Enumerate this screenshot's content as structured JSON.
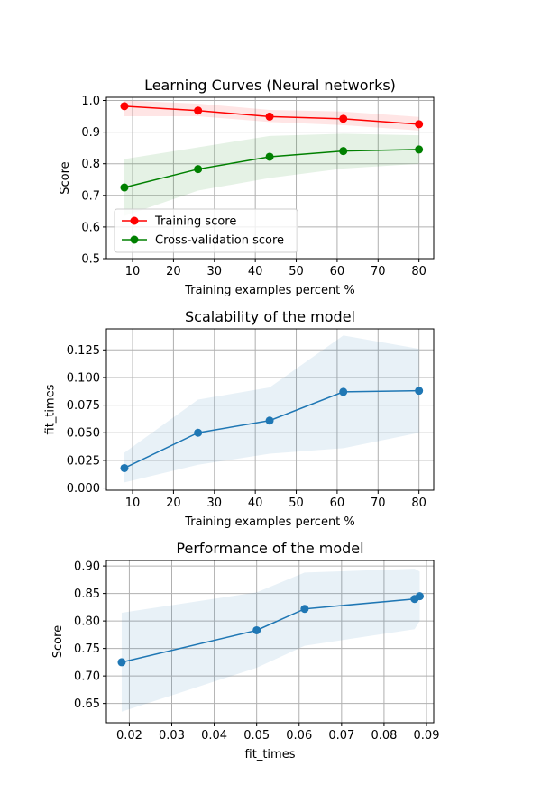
{
  "chart_data": [
    {
      "type": "line",
      "title": "Learning Curves (Neural networks)",
      "xlabel": "Training examples percent %",
      "ylabel": "Score",
      "xlim": [
        3.6,
        83.6
      ],
      "ylim": [
        0.5,
        1.01
      ],
      "xticks": [
        10,
        20,
        30,
        40,
        50,
        60,
        70,
        80
      ],
      "yticks": [
        0.5,
        0.6,
        0.7,
        0.8,
        0.9,
        1.0
      ],
      "ytick_decimals": 1,
      "grid": true,
      "legend": "lower-left",
      "series": [
        {
          "name": "Training score",
          "color": "#ff0000",
          "band_color": "#ff0000",
          "x": [
            8,
            26,
            43.5,
            61.5,
            80
          ],
          "y": [
            0.982,
            0.968,
            0.949,
            0.942,
            0.925
          ],
          "lower": [
            0.95,
            0.95,
            0.932,
            0.922,
            0.905
          ],
          "upper": [
            1.0,
            0.99,
            0.97,
            0.965,
            0.948
          ]
        },
        {
          "name": "Cross-validation score",
          "color": "#008000",
          "band_color": "#008000",
          "x": [
            8,
            26,
            43.5,
            61.5,
            80
          ],
          "y": [
            0.725,
            0.783,
            0.822,
            0.84,
            0.845
          ],
          "lower": [
            0.635,
            0.715,
            0.755,
            0.785,
            0.8
          ],
          "upper": [
            0.815,
            0.852,
            0.888,
            0.895,
            0.89
          ]
        }
      ]
    },
    {
      "type": "line",
      "title": "Scalability of the model",
      "xlabel": "Training examples percent %",
      "ylabel": "fit_times",
      "xlim": [
        3.6,
        83.6
      ],
      "ylim": [
        -0.002,
        0.144
      ],
      "xticks": [
        10,
        20,
        30,
        40,
        50,
        60,
        70,
        80
      ],
      "yticks": [
        0.0,
        0.025,
        0.05,
        0.075,
        0.1,
        0.125
      ],
      "ytick_decimals": 3,
      "grid": true,
      "series": [
        {
          "color": "#1f77b4",
          "band_color": "#1f77b4",
          "x": [
            8,
            26,
            43.5,
            61.5,
            80
          ],
          "y": [
            0.018,
            0.05,
            0.061,
            0.087,
            0.088
          ],
          "lower": [
            0.005,
            0.021,
            0.031,
            0.036,
            0.05
          ],
          "upper": [
            0.032,
            0.08,
            0.091,
            0.138,
            0.126
          ]
        }
      ]
    },
    {
      "type": "line",
      "title": "Performance of the model",
      "xlabel": "fit_times",
      "ylabel": "Score",
      "xlim": [
        0.0146,
        0.0917
      ],
      "ylim": [
        0.615,
        0.91
      ],
      "xticks": [
        0.02,
        0.03,
        0.04,
        0.05,
        0.06,
        0.07,
        0.08,
        0.09
      ],
      "yticks": [
        0.65,
        0.7,
        0.75,
        0.8,
        0.85,
        0.9
      ],
      "xtick_decimals": 2,
      "ytick_decimals": 2,
      "grid": true,
      "series": [
        {
          "color": "#1f77b4",
          "band_color": "#1f77b4",
          "x": [
            0.0182,
            0.05,
            0.0613,
            0.0872,
            0.0884
          ],
          "y": [
            0.725,
            0.783,
            0.822,
            0.84,
            0.845
          ],
          "lower": [
            0.635,
            0.715,
            0.755,
            0.785,
            0.8
          ],
          "upper": [
            0.815,
            0.852,
            0.888,
            0.895,
            0.89
          ]
        }
      ]
    }
  ]
}
